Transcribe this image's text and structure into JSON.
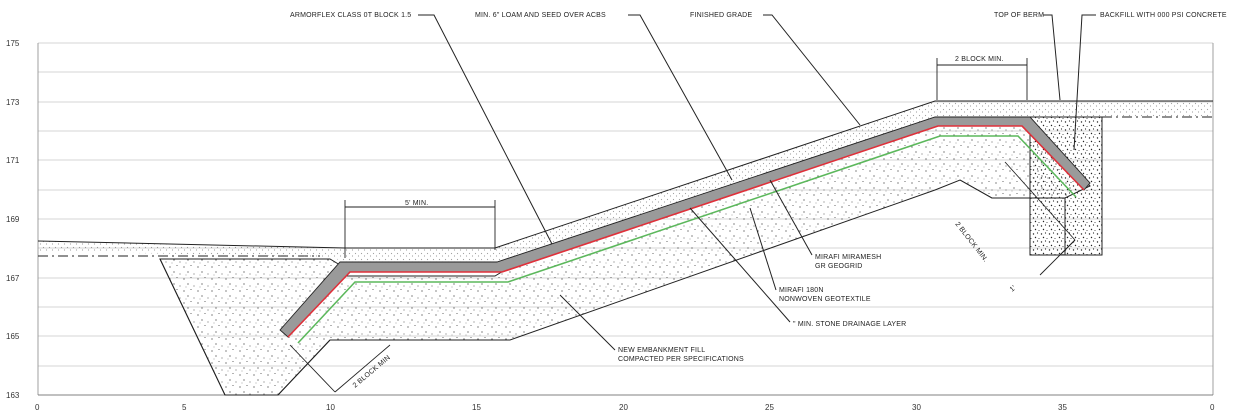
{
  "y_axis_ticks": [
    "175",
    "173",
    "171",
    "169",
    "167",
    "165",
    "163"
  ],
  "x_axis_ticks": [
    "0",
    "5",
    "10",
    "15",
    "20",
    "25",
    "30",
    "35",
    "0"
  ],
  "callouts": {
    "armorflex": "ARMORFLEX CLASS  0T BLOCK 1.5",
    "loam": "MIN. 6\" LOAM AND SEED OVER ACBS",
    "finished_grade": "FINISHED GRADE",
    "top_of_berm": "TOP OF BERM",
    "backfill": "BACKFILL WITH  000 PSI CONCRETE",
    "miramesh_1": "MIRAFI MIRAMESH",
    "miramesh_2": "GR GEOGRID",
    "geotextile_1": "MIRAFI 180N",
    "geotextile_2": "NONWOVEN GEOTEXTILE",
    "drainage": "\" MIN. STONE DRAINAGE LAYER",
    "fill_1": "NEW EMBANKMENT FILL",
    "fill_2": "COMPACTED PER SPECIFICATIONS"
  },
  "dimensions": {
    "bench": "5' MIN.",
    "top_block": "2 BLOCK MIN.",
    "right_block": "2 BLOCK MIN.",
    "right_small": "1'",
    "toe_block": "2 BLOCK MIN"
  },
  "colors": {
    "geogrid": "#e0303a",
    "geotextile": "#5cb85c",
    "block": "#9a9a9a"
  }
}
